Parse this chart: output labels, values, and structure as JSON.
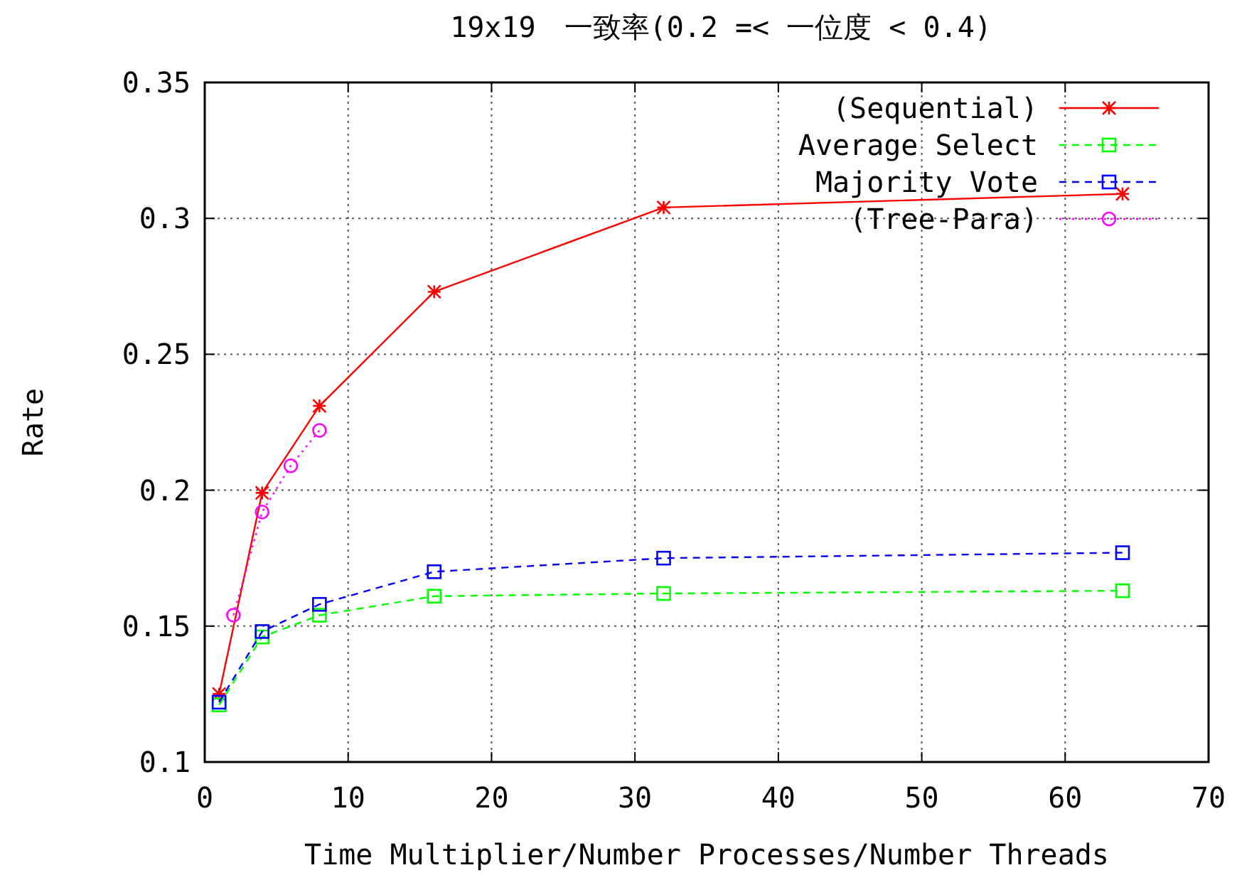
{
  "chart_data": {
    "type": "line",
    "title": "19x19　一致率(0.2 =< 一位度 < 0.4)",
    "xlabel": "Time Multiplier/Number Processes/Number Threads",
    "ylabel": "Rate",
    "xlim": [
      0,
      70
    ],
    "xticks": [
      0,
      10,
      20,
      30,
      40,
      50,
      60,
      70
    ],
    "ylim": [
      0.1,
      0.35
    ],
    "yticks": [
      0.1,
      0.15,
      0.2,
      0.25,
      0.3,
      0.35
    ],
    "grid": true,
    "legend": "top right",
    "series": [
      {
        "name": "(Sequential)",
        "color": "#ff0000",
        "x": [
          1,
          4,
          8,
          16,
          32,
          64
        ],
        "values": [
          0.125,
          0.199,
          0.231,
          0.273,
          0.304,
          0.309
        ],
        "marker": "cross",
        "line_style": "solid"
      },
      {
        "name": "Average Select",
        "color": "#00ff00",
        "x": [
          1,
          4,
          8,
          16,
          32,
          64
        ],
        "values": [
          0.121,
          0.146,
          0.154,
          0.161,
          0.162,
          0.163
        ],
        "marker": "square",
        "line_style": "dashed"
      },
      {
        "name": "Majority Vote",
        "color": "#0000ff",
        "x": [
          1,
          4,
          8,
          16,
          32,
          64
        ],
        "values": [
          0.122,
          0.148,
          0.158,
          0.17,
          0.175,
          0.177
        ],
        "marker": "square",
        "line_style": "dashed"
      },
      {
        "name": "(Tree-Para)",
        "color": "#ff00ff",
        "x": [
          2,
          4,
          6,
          8
        ],
        "values": [
          0.154,
          0.192,
          0.209,
          0.222
        ],
        "marker": "circle",
        "line_style": "dotted"
      }
    ]
  }
}
